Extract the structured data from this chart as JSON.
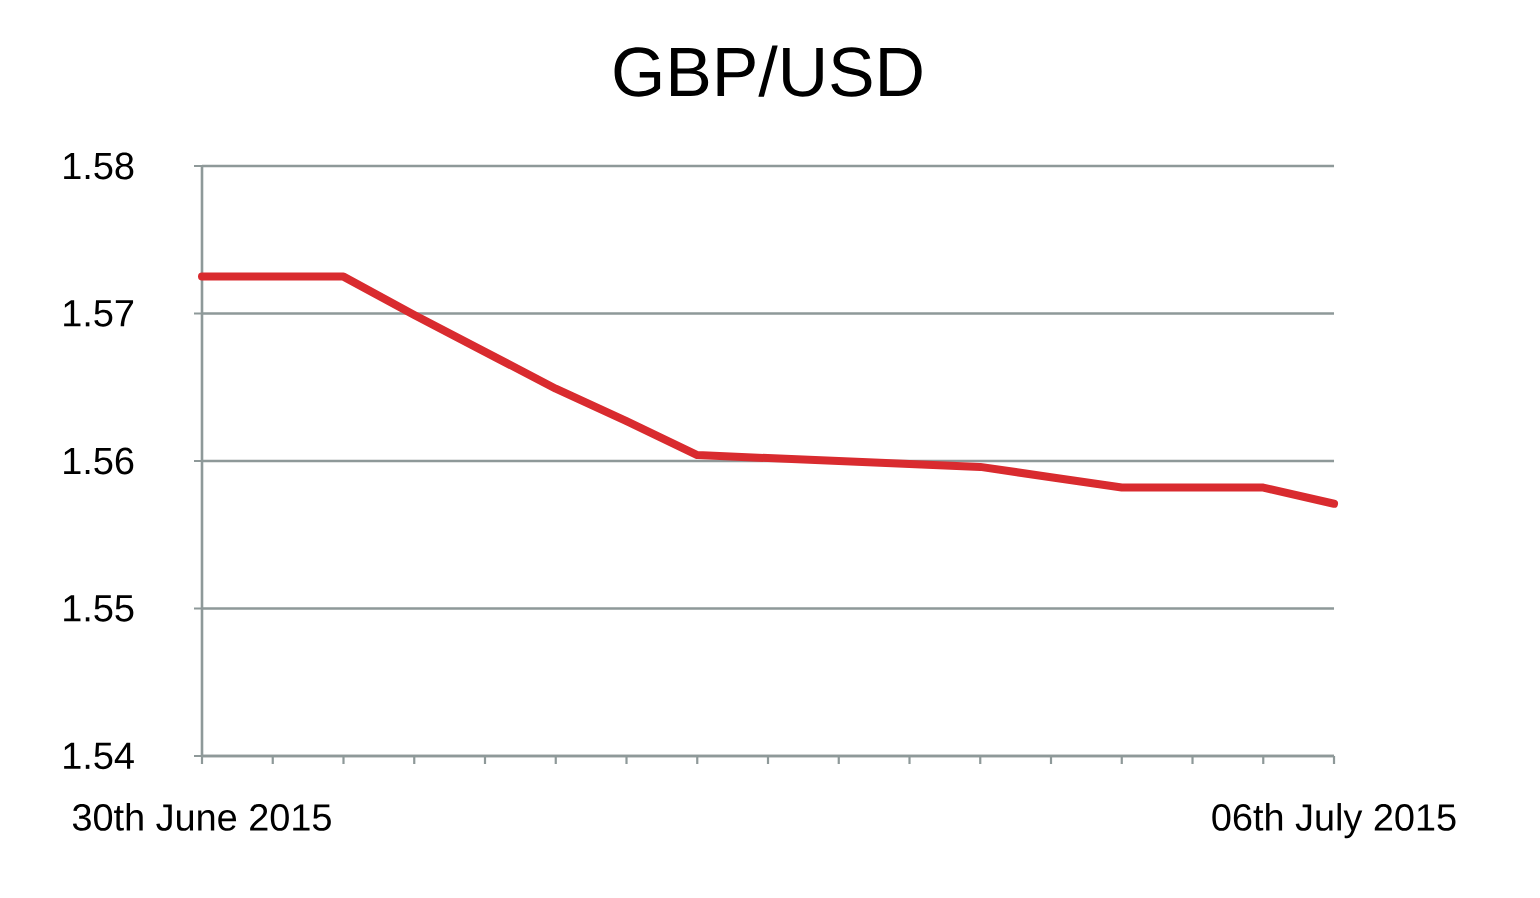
{
  "chart_data": {
    "type": "line",
    "title": "GBP/USD",
    "categories": [
      "30th June 2015",
      null,
      null,
      null,
      null,
      null,
      null,
      null,
      null,
      null,
      null,
      null,
      null,
      null,
      null,
      null,
      "06th July 2015"
    ],
    "series": [
      {
        "color": "#d92b2f",
        "values": [
          1.5725,
          1.5725,
          1.5725,
          1.5699,
          1.5674,
          1.5649,
          1.5627,
          1.5604,
          1.5602,
          1.56,
          1.5598,
          1.5596,
          1.5589,
          1.5582,
          1.5582,
          1.5582,
          1.5571
        ]
      }
    ],
    "ylim": [
      1.54,
      1.58
    ],
    "yticks": [
      1.54,
      1.55,
      1.56,
      1.57,
      1.58
    ],
    "grid": "y",
    "line_style": "solid"
  }
}
